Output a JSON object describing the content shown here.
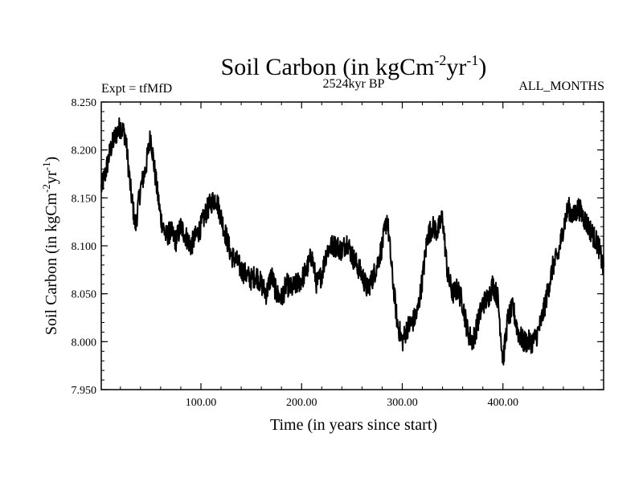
{
  "chart_data": {
    "type": "line",
    "title": "Soil Carbon (in kgCm",
    "title_sup1": "-2",
    "title_mid": "yr",
    "title_sup2": "-1",
    "title_end": ")",
    "experiment_label": "Expt = tfMfD",
    "period_label": "2524kyr BP",
    "months_label": "ALL_MONTHS",
    "xlabel": "Time (in years since start)",
    "ylabel": "Soil Carbon (in kgCm",
    "ylabel_sup1": "-2",
    "ylabel_mid": "yr",
    "ylabel_sup2": "-1",
    "ylabel_end": ")",
    "xlim": [
      1,
      500
    ],
    "ylim": [
      7.95,
      8.25
    ],
    "xticks": [
      100,
      200,
      300,
      400
    ],
    "xtick_labels": [
      "100.00",
      "200.00",
      "300.00",
      "400.00"
    ],
    "yticks": [
      7.95,
      8.0,
      8.05,
      8.1,
      8.15,
      8.2,
      8.25
    ],
    "ytick_labels": [
      "7.950",
      "8.000",
      "8.050",
      "8.100",
      "8.150",
      "8.200",
      "8.250"
    ],
    "series": [
      {
        "name": "Soil Carbon",
        "color": "#000000",
        "x": [
          1,
          5,
          10,
          15,
          20,
          25,
          30,
          35,
          40,
          45,
          50,
          55,
          60,
          65,
          70,
          75,
          80,
          85,
          90,
          95,
          100,
          105,
          110,
          115,
          120,
          125,
          130,
          135,
          140,
          145,
          150,
          155,
          160,
          165,
          170,
          175,
          180,
          185,
          190,
          195,
          200,
          205,
          210,
          215,
          220,
          225,
          230,
          235,
          240,
          245,
          250,
          255,
          260,
          265,
          270,
          275,
          280,
          285,
          290,
          295,
          300,
          305,
          310,
          315,
          320,
          325,
          330,
          335,
          340,
          345,
          350,
          355,
          360,
          365,
          370,
          375,
          380,
          385,
          390,
          395,
          400,
          405,
          410,
          415,
          420,
          425,
          430,
          435,
          440,
          445,
          450,
          455,
          460,
          465,
          470,
          475,
          480,
          485,
          490,
          495,
          500
        ],
        "values": [
          8.16,
          8.175,
          8.2,
          8.215,
          8.225,
          8.215,
          8.16,
          8.12,
          8.16,
          8.18,
          8.215,
          8.17,
          8.13,
          8.11,
          8.115,
          8.105,
          8.12,
          8.11,
          8.1,
          8.11,
          8.12,
          8.135,
          8.145,
          8.15,
          8.13,
          8.11,
          8.09,
          8.085,
          8.075,
          8.07,
          8.065,
          8.07,
          8.06,
          8.05,
          8.07,
          8.05,
          8.045,
          8.06,
          8.055,
          8.06,
          8.065,
          8.075,
          8.09,
          8.06,
          8.07,
          8.095,
          8.1,
          8.1,
          8.095,
          8.105,
          8.09,
          8.08,
          8.07,
          8.055,
          8.065,
          8.08,
          8.1,
          8.13,
          8.07,
          8.02,
          8.0,
          8.015,
          8.02,
          8.03,
          8.065,
          8.11,
          8.12,
          8.115,
          8.13,
          8.07,
          8.05,
          8.055,
          8.04,
          8.01,
          8.0,
          8.02,
          8.04,
          8.045,
          8.06,
          8.045,
          7.98,
          8.025,
          8.035,
          8.01,
          8.0,
          8.0,
          8.0,
          8.01,
          8.03,
          8.055,
          8.08,
          8.09,
          8.12,
          8.14,
          8.13,
          8.14,
          8.13,
          8.12,
          8.11,
          8.1,
          8.075
        ]
      }
    ]
  }
}
